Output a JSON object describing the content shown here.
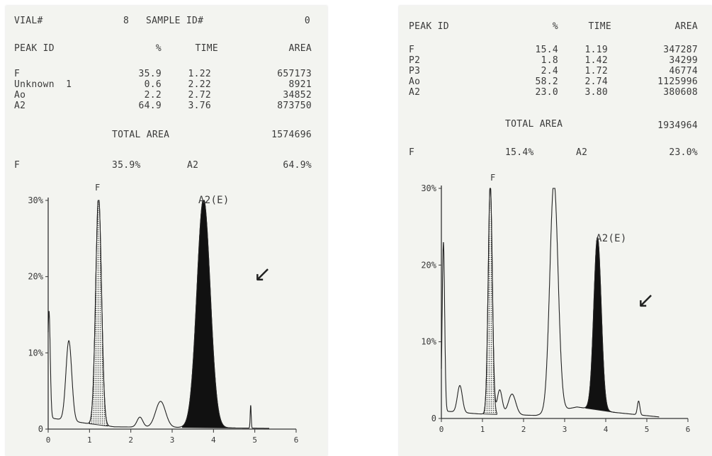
{
  "reports": [
    {
      "header": {
        "vial_label": "VIAL#",
        "vial_value": "8",
        "sample_label": "SAMPLE ID#",
        "sample_value": "0"
      },
      "columns": [
        "PEAK ID",
        "%",
        "TIME",
        "AREA"
      ],
      "rows": [
        [
          "F",
          "35.9",
          "1.22",
          "657173"
        ],
        [
          "Unknown  1",
          "0.6",
          "2.22",
          "8921"
        ],
        [
          "Ao",
          "2.2",
          "2.72",
          "34852"
        ],
        [
          "A2",
          "64.9",
          "3.76",
          "873750"
        ]
      ],
      "total_label": "TOTAL AREA",
      "total_value": "1574696",
      "summary": {
        "f_label": "F",
        "f_value": "35.9%",
        "a2_label": "A2",
        "a2_value": "64.9%"
      },
      "peak_labels": {
        "f": "F",
        "a2": "A2(E)"
      }
    },
    {
      "columns": [
        "PEAK ID",
        "%",
        "TIME",
        "AREA"
      ],
      "rows": [
        [
          "F",
          "15.4",
          "1.19",
          "347287"
        ],
        [
          "P2",
          "1.8",
          "1.42",
          "34299"
        ],
        [
          "P3",
          "2.4",
          "1.72",
          "46774"
        ],
        [
          "Ao",
          "58.2",
          "2.74",
          "1125996"
        ],
        [
          "A2",
          "23.0",
          "3.80",
          "380608"
        ]
      ],
      "total_label": "TOTAL AREA",
      "total_value": "1934964",
      "summary": {
        "f_label": "F",
        "f_value": "15.4%",
        "a2_label": "A2",
        "a2_value": "23.0%"
      },
      "peak_labels": {
        "f": "F",
        "a2": "A2(E)"
      }
    }
  ],
  "chart_data": [
    {
      "type": "line",
      "xlim": [
        0,
        6
      ],
      "ylim": [
        0,
        30
      ],
      "x_ticks": [
        "0",
        "1",
        "2",
        "3",
        "4",
        "5",
        "6"
      ],
      "y_ticks": [
        "0",
        "10%",
        "20%",
        "30%"
      ],
      "peaks": [
        {
          "id": "start",
          "t": 0.02,
          "h": 14,
          "w": 0.03,
          "fill": "none"
        },
        {
          "id": "early",
          "t": 0.5,
          "h": 10.5,
          "w": 0.07,
          "fill": "none"
        },
        {
          "id": "F",
          "t": 1.22,
          "h": 30,
          "w": 0.07,
          "fill": "dotted"
        },
        {
          "id": "Unknown 1",
          "t": 2.22,
          "h": 1.3,
          "w": 0.07,
          "fill": "none"
        },
        {
          "id": "Ao",
          "t": 2.72,
          "h": 3.4,
          "w": 0.12,
          "fill": "none"
        },
        {
          "id": "A2",
          "t": 3.76,
          "h": 30,
          "w": 0.16,
          "fill": "black"
        },
        {
          "id": "spike",
          "t": 4.9,
          "h": 3,
          "w": 0.012,
          "fill": "none"
        }
      ]
    },
    {
      "type": "line",
      "xlim": [
        0,
        6
      ],
      "ylim": [
        0,
        30
      ],
      "x_ticks": [
        "0",
        "1",
        "2",
        "3",
        "4",
        "5",
        "6"
      ],
      "y_ticks": [
        "0",
        "10%",
        "20%",
        "30%"
      ],
      "peaks": [
        {
          "id": "start",
          "t": 0.05,
          "h": 22,
          "w": 0.03,
          "fill": "none"
        },
        {
          "id": "early",
          "t": 0.45,
          "h": 3.5,
          "w": 0.06,
          "fill": "none"
        },
        {
          "id": "F",
          "t": 1.19,
          "h": 30,
          "w": 0.05,
          "fill": "dotted"
        },
        {
          "id": "P2",
          "t": 1.42,
          "h": 3.2,
          "w": 0.06,
          "fill": "none"
        },
        {
          "id": "P3",
          "t": 1.72,
          "h": 2.7,
          "w": 0.09,
          "fill": "none"
        },
        {
          "id": "Ao",
          "t": 2.74,
          "h": 30,
          "w": 0.1,
          "fill": "none"
        },
        {
          "id": "A2",
          "t": 3.8,
          "h": 22.5,
          "w": 0.09,
          "fill": "black"
        },
        {
          "id": "spike",
          "t": 4.8,
          "h": 1.8,
          "w": 0.03,
          "fill": "none"
        }
      ]
    }
  ],
  "annotations": {
    "arrow_glyph": "↙"
  }
}
